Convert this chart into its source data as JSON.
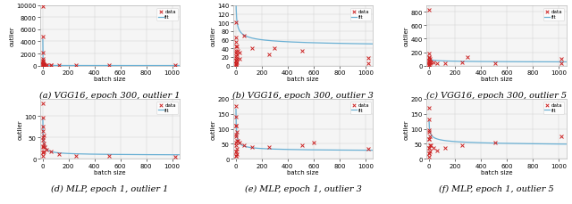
{
  "subplots": [
    {
      "label": "(a) VGG16, epoch 300, outlier 1",
      "ylim": [
        0,
        10000
      ],
      "yticks": [
        0,
        2000,
        4000,
        6000,
        8000,
        10000
      ],
      "fit_a": 8000,
      "fit_b": 1.5,
      "fit_c": 0,
      "scatter_x": [
        2,
        2,
        2,
        2,
        2,
        2,
        2,
        2,
        2,
        4,
        4,
        4,
        4,
        4,
        8,
        8,
        8,
        8,
        8,
        16,
        32,
        32,
        64,
        64,
        128,
        256,
        512,
        1024
      ],
      "scatter_y": [
        9900,
        4800,
        2200,
        1100,
        600,
        350,
        180,
        90,
        40,
        750,
        400,
        200,
        80,
        30,
        180,
        100,
        50,
        20,
        8,
        120,
        80,
        50,
        60,
        20,
        40,
        50,
        20,
        30
      ]
    },
    {
      "label": "(b) VGG16, epoch 300, outlier 3",
      "ylim": [
        0,
        140
      ],
      "yticks": [
        0,
        20,
        40,
        60,
        80,
        100,
        120,
        140
      ],
      "fit_a": 140,
      "fit_b": 0.35,
      "fit_c": 38,
      "scatter_x": [
        2,
        2,
        2,
        2,
        2,
        2,
        2,
        2,
        4,
        4,
        4,
        4,
        4,
        4,
        8,
        8,
        8,
        8,
        16,
        32,
        32,
        64,
        128,
        256,
        300,
        512,
        1024,
        1024
      ],
      "scatter_y": [
        100,
        65,
        45,
        30,
        18,
        12,
        6,
        3,
        55,
        35,
        22,
        12,
        6,
        2,
        45,
        25,
        15,
        8,
        35,
        30,
        15,
        70,
        40,
        25,
        40,
        35,
        18,
        5
      ]
    },
    {
      "label": "(c) VGG16, epoch 300, outlier 5",
      "ylim": [
        0,
        900
      ],
      "yticks": [
        0,
        200,
        400,
        600,
        800
      ],
      "fit_a": 100,
      "fit_b": 0.2,
      "fit_c": 30,
      "scatter_x": [
        2,
        2,
        2,
        2,
        2,
        2,
        2,
        2,
        4,
        4,
        4,
        4,
        8,
        8,
        8,
        16,
        32,
        64,
        128,
        256,
        300,
        512,
        1024,
        1024
      ],
      "scatter_y": [
        830,
        180,
        130,
        80,
        50,
        25,
        12,
        4,
        120,
        80,
        45,
        20,
        100,
        60,
        30,
        50,
        50,
        35,
        35,
        50,
        130,
        35,
        100,
        35
      ]
    },
    {
      "label": "(d) MLP, epoch 1, outlier 1",
      "ylim": [
        0,
        140
      ],
      "yticks": [
        0,
        50,
        100
      ],
      "fit_a": 110,
      "fit_b": 0.6,
      "fit_c": 8,
      "scatter_x": [
        2,
        2,
        2,
        2,
        2,
        2,
        2,
        4,
        4,
        4,
        4,
        8,
        8,
        8,
        16,
        32,
        64,
        128,
        256,
        512,
        1024
      ],
      "scatter_y": [
        130,
        95,
        65,
        45,
        28,
        15,
        8,
        75,
        50,
        30,
        15,
        55,
        35,
        18,
        28,
        22,
        18,
        12,
        8,
        7,
        5
      ]
    },
    {
      "label": "(e) MLP, epoch 1, outlier 3",
      "ylim": [
        0,
        200
      ],
      "yticks": [
        0,
        50,
        100,
        150,
        200
      ],
      "fit_a": 175,
      "fit_b": 0.55,
      "fit_c": 25,
      "scatter_x": [
        2,
        2,
        2,
        2,
        2,
        2,
        2,
        4,
        4,
        4,
        4,
        4,
        8,
        8,
        8,
        8,
        16,
        32,
        64,
        128,
        256,
        512,
        600,
        1024
      ],
      "scatter_y": [
        175,
        140,
        110,
        75,
        45,
        25,
        10,
        110,
        80,
        55,
        25,
        10,
        90,
        60,
        35,
        15,
        60,
        55,
        45,
        40,
        40,
        45,
        55,
        35
      ]
    },
    {
      "label": "(f) MLP, epoch 1, outlier 5",
      "ylim": [
        0,
        200
      ],
      "yticks": [
        0,
        50,
        100,
        150,
        200
      ],
      "fit_a": 100,
      "fit_b": 0.28,
      "fit_c": 35,
      "scatter_x": [
        2,
        2,
        2,
        2,
        2,
        2,
        2,
        4,
        4,
        4,
        4,
        8,
        8,
        8,
        16,
        32,
        64,
        128,
        256,
        512,
        1024
      ],
      "scatter_y": [
        170,
        130,
        95,
        65,
        38,
        18,
        8,
        90,
        65,
        38,
        18,
        75,
        45,
        25,
        45,
        38,
        28,
        38,
        45,
        55,
        75
      ]
    }
  ],
  "xlim": [
    -20,
    1060
  ],
  "xticks": [
    0,
    200,
    400,
    600,
    800,
    1000
  ],
  "xlabel": "batch size",
  "ylabel": "outlier",
  "scatter_color": "#cc2222",
  "fit_color": "#6ab0d4",
  "bg_color": "#f5f5f5",
  "marker_size": 8,
  "legend_data_label": "data",
  "legend_fit_label": "fit",
  "figure_bg": "#ffffff",
  "caption_fontsize": 7,
  "tick_fontsize": 5,
  "label_fontsize": 5
}
